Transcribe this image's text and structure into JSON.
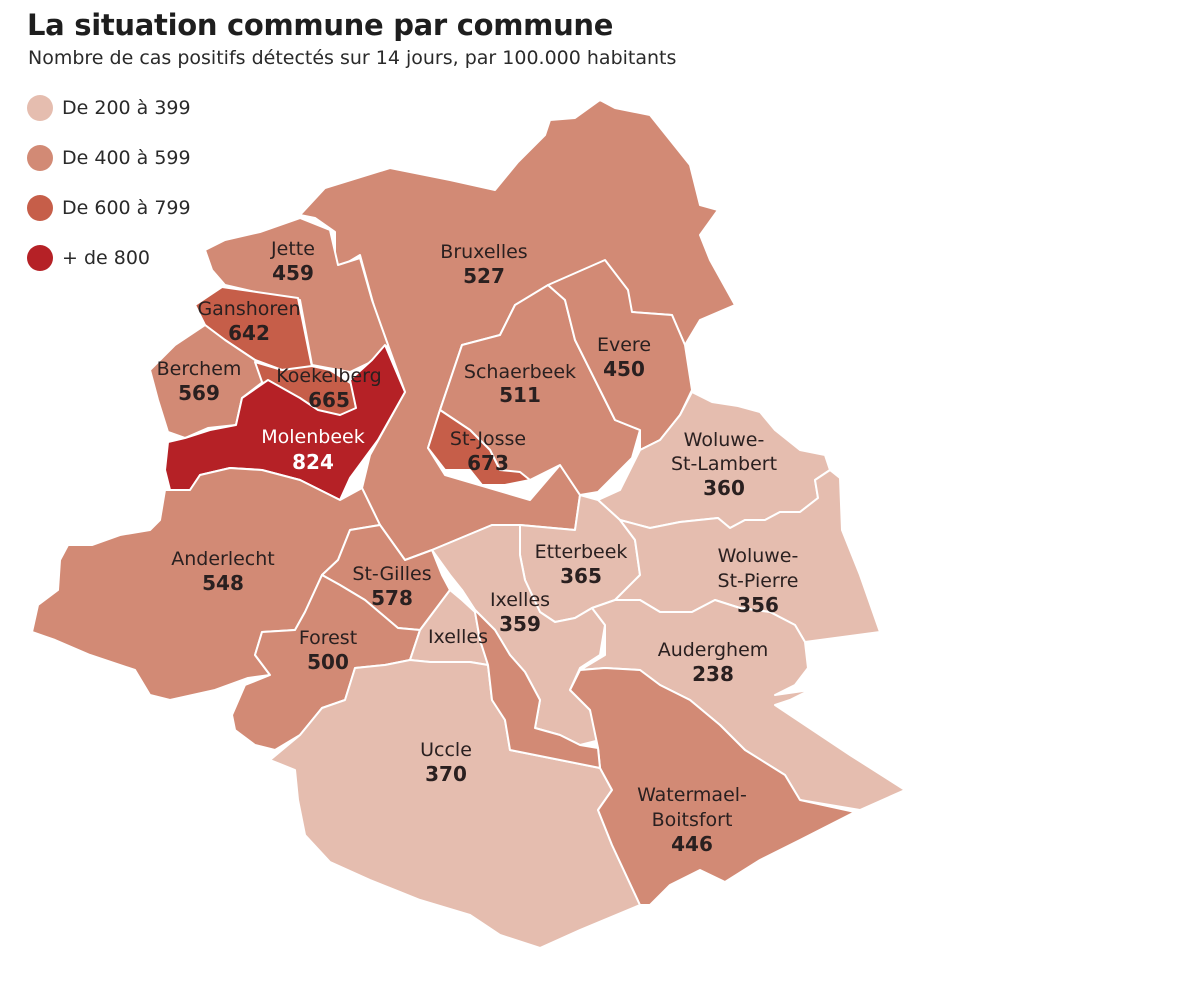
{
  "title": "La situation commune par commune",
  "subtitle": "Nombre de cas positifs détectés sur 14 jours, par 100.000 habitants",
  "legend": [
    {
      "label": "De 200 à 399",
      "color": "#e5bdaf"
    },
    {
      "label": "De 400 à 599",
      "color": "#d28a75"
    },
    {
      "label": "De 600 à 799",
      "color": "#c65e49"
    },
    {
      "label": "+ de 800",
      "color": "#b52126"
    }
  ],
  "communes": {
    "jette": {
      "name": "Jette",
      "value": "459"
    },
    "ganshoren": {
      "name": "Ganshoren",
      "value": "642"
    },
    "berchem": {
      "name": "Berchem",
      "value": "569"
    },
    "koekelberg": {
      "name": "Koekelberg",
      "value": "665"
    },
    "molenbeek": {
      "name": "Molenbeek",
      "value": "824"
    },
    "bruxelles": {
      "name": "Bruxelles",
      "value": "527"
    },
    "schaerbeek": {
      "name": "Schaerbeek",
      "value": "511"
    },
    "evere": {
      "name": "Evere",
      "value": "450"
    },
    "stjosse": {
      "name": "St-Josse",
      "value": "673"
    },
    "woluwe_st_lambert": {
      "name_1": "Woluwe-",
      "name_2": "St-Lambert",
      "value": "360"
    },
    "anderlecht": {
      "name": "Anderlecht",
      "value": "548"
    },
    "stgilles": {
      "name": "St-Gilles",
      "value": "578"
    },
    "etterbeek": {
      "name": "Etterbeek",
      "value": "365"
    },
    "woluwe_st_pierre": {
      "name_1": "Woluwe-",
      "name_2": "St-Pierre",
      "value": "356"
    },
    "ixelles": {
      "name": "Ixelles",
      "value": "359"
    },
    "ixelles_sud": {
      "name": "Ixelles"
    },
    "forest": {
      "name": "Forest",
      "value": "500"
    },
    "auderghem": {
      "name": "Auderghem",
      "value": "238"
    },
    "uccle": {
      "name": "Uccle",
      "value": "370"
    },
    "watermael_boitsfort": {
      "name_1": "Watermael-",
      "name_2": "Boitsfort",
      "value": "446"
    }
  }
}
